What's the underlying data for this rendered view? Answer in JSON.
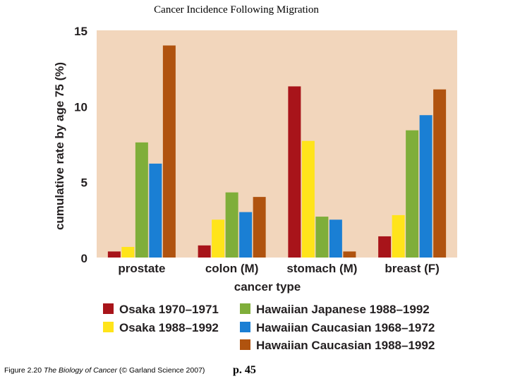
{
  "slide": {
    "title": "Cancer Incidence Following Migration",
    "caption_prefix": "Figure 2.20",
    "caption_book": "The Biology of Cancer",
    "caption_suffix": "(© Garland Science 2007)",
    "page": "p. 45"
  },
  "chart_data": {
    "type": "bar",
    "title": "",
    "xlabel": "cancer type",
    "ylabel": "cumulative rate by age 75 (%)",
    "ylim": [
      0,
      15
    ],
    "yticks": [
      0,
      5,
      10,
      15
    ],
    "categories": [
      "prostate",
      "colon (M)",
      "stomach (M)",
      "breast (F)"
    ],
    "series": [
      {
        "name": "Osaka 1970–1971",
        "color": "#a8141a",
        "values": [
          0.4,
          0.8,
          11.3,
          1.4
        ]
      },
      {
        "name": "Osaka 1988–1992",
        "color": "#ffe41a",
        "values": [
          0.7,
          2.5,
          7.7,
          2.8
        ]
      },
      {
        "name": "Hawaiian Japanese 1988–1992",
        "color": "#7fae3a",
        "values": [
          7.6,
          4.3,
          2.7,
          8.4
        ]
      },
      {
        "name": "Hawaiian Caucasian 1968–1972",
        "color": "#1a7fd4",
        "values": [
          6.2,
          3.0,
          2.5,
          9.4
        ]
      },
      {
        "name": "Hawaiian Caucasian 1988–1992",
        "color": "#b0530f",
        "values": [
          14.0,
          4.0,
          0.4,
          11.1
        ]
      }
    ],
    "legend_position": "bottom",
    "plot_background": "#f2d6bc"
  }
}
